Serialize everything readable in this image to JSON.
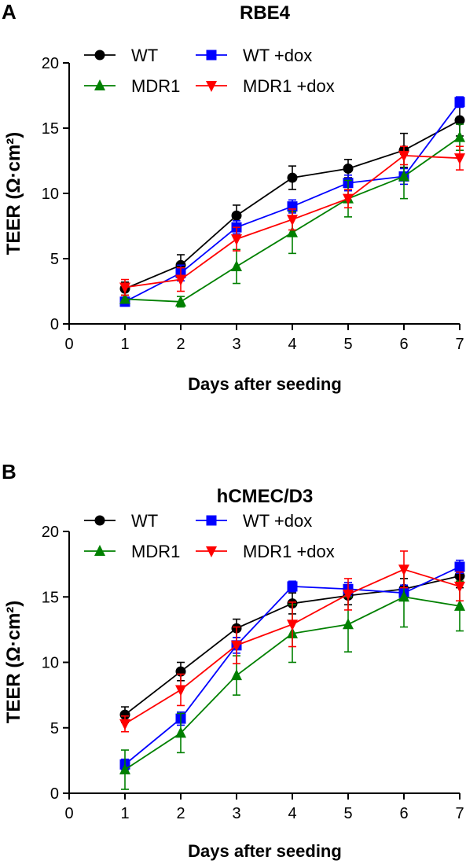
{
  "chart_data": [
    {
      "type": "line",
      "panel": "A",
      "title": "RBE4",
      "xlabel": "Days after seeding",
      "ylabel": "TEER (Ω·cm²)",
      "xlim": [
        0,
        7
      ],
      "ylim": [
        0,
        20
      ],
      "xticks": [
        0,
        1,
        2,
        3,
        4,
        5,
        6,
        7
      ],
      "yticks": [
        0,
        5,
        10,
        15,
        20
      ],
      "x": [
        1,
        2,
        3,
        4,
        5,
        6,
        7
      ],
      "legend": "top-left",
      "grid": false,
      "series": [
        {
          "name": "WT",
          "color": "#000000",
          "marker": "circle",
          "values": [
            2.7,
            4.5,
            8.3,
            11.2,
            11.9,
            13.3,
            15.6
          ],
          "errors": [
            0.5,
            0.8,
            0.8,
            0.9,
            0.7,
            1.3,
            1.2
          ]
        },
        {
          "name": "WT +dox",
          "color": "#0000ff",
          "marker": "square",
          "values": [
            1.7,
            3.9,
            7.4,
            9.0,
            10.8,
            11.3,
            17.0
          ],
          "errors": [
            0.3,
            0.6,
            0.5,
            0.5,
            0.6,
            0.6,
            0.4
          ]
        },
        {
          "name": "MDR1",
          "color": "#008000",
          "marker": "triangle-up",
          "values": [
            1.9,
            1.7,
            4.4,
            7.0,
            9.6,
            11.3,
            14.3
          ],
          "errors": [
            0.3,
            0.4,
            1.3,
            1.6,
            1.4,
            1.7,
            1.0
          ]
        },
        {
          "name": "MDR1 +dox",
          "color": "#ff0000",
          "marker": "triangle-down",
          "values": [
            2.8,
            3.4,
            6.5,
            8.0,
            9.6,
            12.9,
            12.7
          ],
          "errors": [
            0.6,
            0.9,
            0.9,
            0.8,
            0.7,
            0.7,
            0.9
          ]
        }
      ]
    },
    {
      "type": "line",
      "panel": "B",
      "title": "hCMEC/D3",
      "xlabel": "Days after seeding",
      "ylabel": "TEER (Ω·cm²)",
      "xlim": [
        0,
        7
      ],
      "ylim": [
        0,
        20
      ],
      "xticks": [
        0,
        1,
        2,
        3,
        4,
        5,
        6,
        7
      ],
      "yticks": [
        0,
        5,
        10,
        15,
        20
      ],
      "x": [
        1,
        2,
        3,
        4,
        5,
        6,
        7
      ],
      "legend": "top-left",
      "grid": false,
      "series": [
        {
          "name": "WT",
          "color": "#000000",
          "marker": "circle",
          "values": [
            6.0,
            9.3,
            12.6,
            14.5,
            15.1,
            15.6,
            16.6
          ],
          "errors": [
            0.6,
            0.7,
            0.7,
            0.8,
            0.7,
            0.8,
            0.9
          ]
        },
        {
          "name": "WT +dox",
          "color": "#0000ff",
          "marker": "square",
          "values": [
            2.2,
            5.7,
            11.3,
            15.8,
            15.6,
            15.3,
            17.3
          ],
          "errors": [
            0.4,
            0.5,
            0.6,
            0.4,
            0.5,
            0.6,
            0.5
          ]
        },
        {
          "name": "MDR1",
          "color": "#008000",
          "marker": "triangle-up",
          "values": [
            1.8,
            4.6,
            9.0,
            12.2,
            12.9,
            15.0,
            14.3
          ],
          "errors": [
            1.5,
            1.5,
            1.5,
            2.2,
            2.1,
            2.3,
            1.9
          ]
        },
        {
          "name": "MDR1 +dox",
          "color": "#ff0000",
          "marker": "triangle-down",
          "values": [
            5.3,
            7.9,
            11.3,
            12.9,
            15.2,
            17.1,
            15.8
          ],
          "errors": [
            0.6,
            1.2,
            1.4,
            1.7,
            1.2,
            1.4,
            1.1
          ]
        }
      ]
    }
  ]
}
